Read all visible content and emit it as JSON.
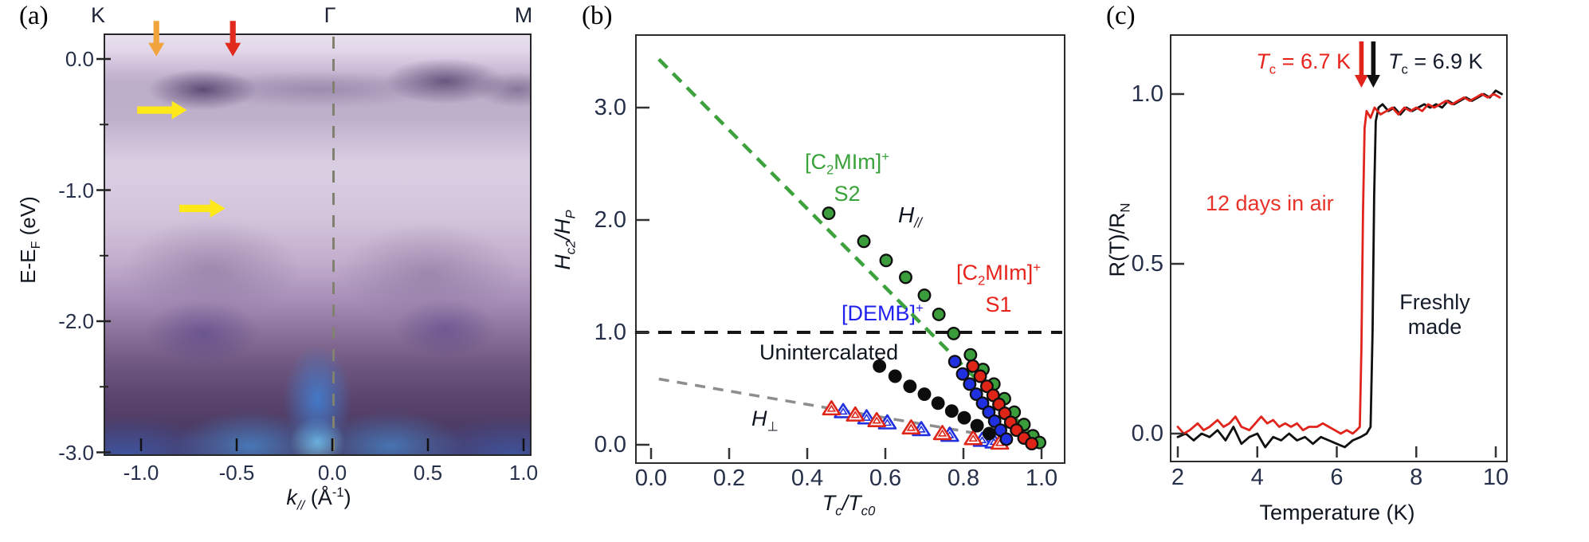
{
  "panels": {
    "a": {
      "label": "(a)",
      "kpoints": [
        "K",
        "Γ",
        "M"
      ],
      "ylabel": {
        "pre": "E-E",
        "sub": "F",
        "post": " (eV)"
      },
      "xlabel": {
        "pre": "k",
        "sub": "//",
        "mid": " (Å",
        "sup": "-1",
        "post": ")"
      }
    },
    "b": {
      "label": "(b)",
      "ylabel": {
        "pre": "H",
        "sub1": "c2",
        "mid": "/H",
        "sub2": "P"
      },
      "xlabel": {
        "pre": "T",
        "sub1": "c",
        "mid": "/T",
        "sub2": "c0"
      },
      "series_labels": {
        "s2": {
          "pre": "[C",
          "sub": "2",
          "mid": "MIm]",
          "sup": "+",
          "line2": "S2"
        },
        "s1": {
          "pre": "[C",
          "sub": "2",
          "mid": "MIm]",
          "sup": "+",
          "line2": "S1"
        },
        "demb": {
          "pre": "[DEMB]",
          "sup": "+"
        },
        "unintercalated": "Unintercalated",
        "h_parallel": {
          "pre": "H",
          "sub": "//"
        },
        "h_perp": {
          "pre": "H",
          "sub": "⊥"
        }
      }
    },
    "c": {
      "label": "(c)",
      "ylabel": {
        "pre": "R(T)/R",
        "sub": "N"
      },
      "xlabel": "Temperature (K)",
      "tc_red": {
        "pre": "T",
        "sub": "c",
        "post": " = 6.7 K"
      },
      "tc_black": {
        "pre": "T",
        "sub": "c",
        "post": " = 6.9 K"
      },
      "aged_label": "12 days in air",
      "fresh_label_line1": "Freshly",
      "fresh_label_line2": "made"
    }
  },
  "chart_data": [
    {
      "type": "heatmap",
      "panel": "a",
      "xlabel": "k// (Å^-1)",
      "ylabel": "E-EF (eV)",
      "xlim": [
        -1.2,
        1.03
      ],
      "ylim": [
        -3.05,
        0.2
      ],
      "xticks": [
        -1.0,
        -0.5,
        0.0,
        0.5,
        1.0
      ],
      "xtick_labels": [
        "-1.0",
        "-0.5",
        "0.0",
        "0.5",
        "1.0"
      ],
      "yticks": [
        0.0,
        -1.0,
        -2.0,
        -3.0
      ],
      "ytick_labels": [
        "0.0",
        "-1.0",
        "-2.0",
        "-3.0"
      ],
      "yticks_minor": [
        -0.5,
        -1.5,
        -2.5
      ],
      "high_symmetry_labels": [
        {
          "label": "K",
          "k": -1.19
        },
        {
          "label": "Γ",
          "k": 0.0
        },
        {
          "label": "M",
          "k": 1.0
        }
      ],
      "gamma_dashed_line_k": 0.0,
      "colormap_description": "pale lavender background; dark purple flat band just below EF, strongest near k = -0.6 and +0.6; broad dark purple valence features below -1.3 eV; bright blue band at the bottom with an apex at Gamma reaching about -2.2 eV",
      "annotations": [
        {
          "name": "orange-arrow",
          "shape": "arrow-down",
          "color": "#f2a43c",
          "k": -0.92,
          "tip_E": 0.02,
          "length_eV": 0.27
        },
        {
          "name": "red-arrow",
          "shape": "arrow-down",
          "color": "#e02a1e",
          "k": -0.52,
          "tip_E": 0.02,
          "length_eV": 0.27
        },
        {
          "name": "yellow-arrow-upper",
          "shape": "arrow-right",
          "color": "#ffe81a",
          "tip_k": -0.76,
          "E": -0.39,
          "length_k": 0.26
        },
        {
          "name": "yellow-arrow-lower",
          "shape": "arrow-right",
          "color": "#ffe81a",
          "tip_k": -0.56,
          "E": -1.14,
          "length_k": 0.24
        }
      ]
    },
    {
      "type": "scatter",
      "panel": "b",
      "xlabel": "Tc/Tc0",
      "ylabel": "Hc2/HP",
      "xlim": [
        -0.041,
        1.053
      ],
      "ylim": [
        -0.14,
        3.65
      ],
      "xticks": [
        0.0,
        0.2,
        0.4,
        0.6,
        0.8,
        1.0
      ],
      "xtick_labels": [
        "0.0",
        "0.2",
        "0.4",
        "0.6",
        "0.8",
        "1.0"
      ],
      "yticks": [
        0.0,
        1.0,
        2.0,
        3.0
      ],
      "ytick_labels": [
        "0.0",
        "1.0",
        "2.0",
        "3.0"
      ],
      "lines": [
        {
          "name": "H-parallel-fit",
          "style": "dashed",
          "color": "#3da23d",
          "from": [
            0.02,
            3.43
          ],
          "to": [
            1.0,
            0.0
          ]
        },
        {
          "name": "pauli-limit",
          "style": "dashed",
          "color": "#151515",
          "from": [
            -0.041,
            1.0
          ],
          "to": [
            1.053,
            1.0
          ]
        },
        {
          "name": "H-perp-fit",
          "style": "dashed",
          "color": "#8d8d8d",
          "from": [
            0.02,
            0.585
          ],
          "to": [
            0.97,
            0.02
          ]
        }
      ],
      "series": [
        {
          "name": "[C2MIm]+ S2 (H parallel)",
          "marker": "circle",
          "color": "#3a9c3a",
          "points": [
            [
              0.455,
              2.06
            ],
            [
              0.545,
              1.81
            ],
            [
              0.602,
              1.64
            ],
            [
              0.652,
              1.49
            ],
            [
              0.7,
              1.33
            ],
            [
              0.737,
              1.16
            ],
            [
              0.775,
              0.99
            ],
            [
              0.818,
              0.8
            ],
            [
              0.85,
              0.67
            ],
            [
              0.878,
              0.54
            ],
            [
              0.905,
              0.41
            ],
            [
              0.93,
              0.29
            ],
            [
              0.955,
              0.18
            ],
            [
              0.978,
              0.08
            ],
            [
              0.995,
              0.02
            ]
          ]
        },
        {
          "name": "Unintercalated",
          "marker": "circle",
          "color": "#0c0c0c",
          "points": [
            [
              0.585,
              0.7
            ],
            [
              0.625,
              0.61
            ],
            [
              0.663,
              0.52
            ],
            [
              0.7,
              0.45
            ],
            [
              0.735,
              0.37
            ],
            [
              0.77,
              0.3
            ],
            [
              0.802,
              0.24
            ],
            [
              0.835,
              0.17
            ],
            [
              0.866,
              0.1
            ]
          ]
        },
        {
          "name": "[DEMB]+",
          "marker": "circle",
          "color": "#2030df",
          "points": [
            [
              0.778,
              0.74
            ],
            [
              0.798,
              0.63
            ],
            [
              0.816,
              0.54
            ],
            [
              0.833,
              0.45
            ],
            [
              0.849,
              0.37
            ],
            [
              0.865,
              0.29
            ],
            [
              0.88,
              0.21
            ],
            [
              0.895,
              0.13
            ],
            [
              0.91,
              0.05
            ]
          ]
        },
        {
          "name": "[C2MIm]+ S1",
          "marker": "circle",
          "color": "#df2418",
          "points": [
            [
              0.824,
              0.7
            ],
            [
              0.843,
              0.61
            ],
            [
              0.86,
              0.52
            ],
            [
              0.876,
              0.44
            ],
            [
              0.891,
              0.36
            ],
            [
              0.906,
              0.28
            ],
            [
              0.921,
              0.2
            ],
            [
              0.936,
              0.13
            ],
            [
              0.955,
              0.06
            ],
            [
              0.975,
              0.01
            ]
          ]
        },
        {
          "name": "H-perp red (triangles)",
          "marker": "triangle-open",
          "color": "#df2418",
          "points": [
            [
              0.462,
              0.32
            ],
            [
              0.523,
              0.265
            ],
            [
              0.578,
              0.215
            ],
            [
              0.666,
              0.15
            ],
            [
              0.746,
              0.1
            ],
            [
              0.825,
              0.055
            ],
            [
              0.893,
              0.015
            ]
          ]
        },
        {
          "name": "H-perp blue (triangles)",
          "marker": "triangle-open",
          "color": "#2030df",
          "points": [
            [
              0.492,
              0.295
            ],
            [
              0.552,
              0.24
            ],
            [
              0.605,
              0.195
            ],
            [
              0.692,
              0.135
            ],
            [
              0.765,
              0.085
            ],
            [
              0.848,
              0.04
            ],
            [
              0.878,
              0.025
            ]
          ]
        }
      ]
    },
    {
      "type": "line",
      "panel": "c",
      "xlabel": "Temperature (K)",
      "ylabel": "R(T)/RN",
      "xlim": [
        1.8,
        10.22
      ],
      "ylim": [
        -0.075,
        1.18
      ],
      "xticks": [
        2,
        4,
        6,
        8,
        10
      ],
      "xtick_labels": [
        "2",
        "4",
        "6",
        "8",
        "10"
      ],
      "yticks": [
        0.0,
        0.5,
        1.0
      ],
      "ytick_labels": [
        "0.0",
        "0.5",
        "1.0"
      ],
      "series": [
        {
          "name": "Freshly made (Tc = 6.9 K)",
          "color": "#101010",
          "points": [
            [
              2.0,
              -0.01
            ],
            [
              2.2,
              0.0
            ],
            [
              2.4,
              -0.02
            ],
            [
              2.6,
              0.0
            ],
            [
              2.8,
              -0.01
            ],
            [
              3.0,
              0.01
            ],
            [
              3.2,
              -0.02
            ],
            [
              3.4,
              0.02
            ],
            [
              3.6,
              -0.03
            ],
            [
              3.8,
              -0.01
            ],
            [
              4.0,
              0.0
            ],
            [
              4.2,
              -0.04
            ],
            [
              4.4,
              -0.01
            ],
            [
              4.6,
              -0.02
            ],
            [
              4.8,
              0.0
            ],
            [
              5.0,
              -0.02
            ],
            [
              5.2,
              -0.01
            ],
            [
              5.4,
              -0.03
            ],
            [
              5.6,
              -0.01
            ],
            [
              5.8,
              -0.02
            ],
            [
              6.0,
              -0.03
            ],
            [
              6.2,
              -0.04
            ],
            [
              6.4,
              -0.02
            ],
            [
              6.6,
              -0.01
            ],
            [
              6.75,
              0.0
            ],
            [
              6.85,
              0.02
            ],
            [
              6.9,
              0.3
            ],
            [
              6.94,
              0.7
            ],
            [
              6.98,
              0.92
            ],
            [
              7.05,
              0.96
            ],
            [
              7.15,
              0.97
            ],
            [
              7.3,
              0.95
            ],
            [
              7.45,
              0.96
            ],
            [
              7.6,
              0.94
            ],
            [
              7.75,
              0.96
            ],
            [
              7.9,
              0.95
            ],
            [
              8.05,
              0.96
            ],
            [
              8.2,
              0.97
            ],
            [
              8.35,
              0.96
            ],
            [
              8.5,
              0.97
            ],
            [
              8.65,
              0.96
            ],
            [
              8.8,
              0.98
            ],
            [
              8.95,
              0.97
            ],
            [
              9.1,
              0.98
            ],
            [
              9.25,
              0.99
            ],
            [
              9.4,
              0.98
            ],
            [
              9.55,
              0.99
            ],
            [
              9.7,
              1.0
            ],
            [
              9.85,
              0.99
            ],
            [
              10.0,
              1.01
            ],
            [
              10.15,
              1.0
            ]
          ]
        },
        {
          "name": "12 days in air (Tc = 6.7 K)",
          "color": "#e0241c",
          "points": [
            [
              2.0,
              0.02
            ],
            [
              2.15,
              0.0
            ],
            [
              2.3,
              0.01
            ],
            [
              2.5,
              0.03
            ],
            [
              2.65,
              0.01
            ],
            [
              2.8,
              0.02
            ],
            [
              3.0,
              0.04
            ],
            [
              3.15,
              0.02
            ],
            [
              3.3,
              0.03
            ],
            [
              3.45,
              0.05
            ],
            [
              3.6,
              0.02
            ],
            [
              3.8,
              0.01
            ],
            [
              3.95,
              0.03
            ],
            [
              4.1,
              0.05
            ],
            [
              4.25,
              0.03
            ],
            [
              4.4,
              0.04
            ],
            [
              4.55,
              0.02
            ],
            [
              4.7,
              0.03
            ],
            [
              4.85,
              0.02
            ],
            [
              5.0,
              0.03
            ],
            [
              5.15,
              0.01
            ],
            [
              5.3,
              0.02
            ],
            [
              5.5,
              0.02
            ],
            [
              5.65,
              0.03
            ],
            [
              5.8,
              0.02
            ],
            [
              5.95,
              0.01
            ],
            [
              6.1,
              0.0
            ],
            [
              6.25,
              0.01
            ],
            [
              6.4,
              0.0
            ],
            [
              6.5,
              0.01
            ],
            [
              6.58,
              0.02
            ],
            [
              6.62,
              0.25
            ],
            [
              6.66,
              0.65
            ],
            [
              6.7,
              0.9
            ],
            [
              6.75,
              0.95
            ],
            [
              6.85,
              0.93
            ],
            [
              6.95,
              0.96
            ],
            [
              7.1,
              0.94
            ],
            [
              7.25,
              0.95
            ],
            [
              7.4,
              0.96
            ],
            [
              7.55,
              0.94
            ],
            [
              7.7,
              0.96
            ],
            [
              7.85,
              0.95
            ],
            [
              8.0,
              0.96
            ],
            [
              8.15,
              0.95
            ],
            [
              8.3,
              0.97
            ],
            [
              8.45,
              0.96
            ],
            [
              8.6,
              0.97
            ],
            [
              8.75,
              0.98
            ],
            [
              8.9,
              0.97
            ],
            [
              9.05,
              0.98
            ],
            [
              9.2,
              0.99
            ],
            [
              9.35,
              0.98
            ],
            [
              9.5,
              0.99
            ],
            [
              9.65,
              1.0
            ],
            [
              9.8,
              0.99
            ],
            [
              9.95,
              1.0
            ],
            [
              10.1,
              0.99
            ]
          ]
        }
      ],
      "arrows": [
        {
          "name": "red-transition-arrow",
          "color": "#e0241c",
          "T": 6.62
        },
        {
          "name": "black-transition-arrow",
          "color": "#101010",
          "T": 6.92
        }
      ]
    }
  ]
}
